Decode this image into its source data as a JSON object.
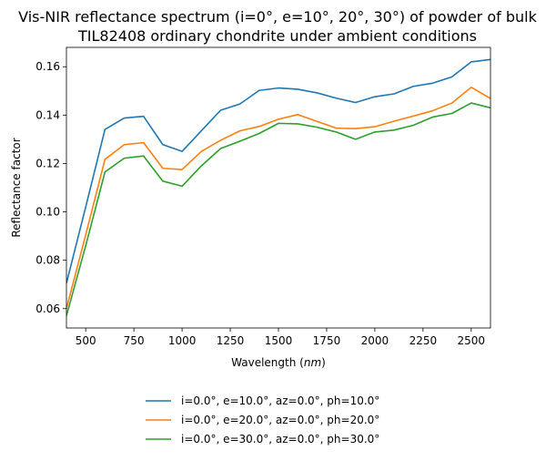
{
  "chart_data": {
    "type": "line",
    "title_lines": [
      "Vis-NIR reflectance spectrum (i=0°, e=10°, 20°, 30°) of powder of bulk",
      "TIL82408 ordinary chondrite under ambient conditions"
    ],
    "xlabel_prefix": "Wavelength (",
    "xlabel_unit": "nm",
    "xlabel_suffix": ")",
    "ylabel": "Reflectance factor",
    "xlim": [
      400,
      2600
    ],
    "ylim": [
      0.052,
      0.168
    ],
    "xticks": [
      500,
      750,
      1000,
      1250,
      1500,
      1750,
      2000,
      2250,
      2500
    ],
    "yticks": [
      0.06,
      0.08,
      0.1,
      0.12,
      0.14,
      0.16
    ],
    "ytick_labels": [
      "0.06",
      "0.08",
      "0.10",
      "0.12",
      "0.14",
      "0.16"
    ],
    "x": [
      400,
      500,
      600,
      700,
      800,
      900,
      1000,
      1100,
      1200,
      1300,
      1400,
      1500,
      1600,
      1700,
      1800,
      1900,
      2000,
      2100,
      2200,
      2300,
      2400,
      2500,
      2600
    ],
    "series": [
      {
        "name": "i=0.0°, e=10.0°, az=0.0°, ph=10.0°",
        "color": "#1f77b4",
        "values": [
          0.0705,
          0.102,
          0.1341,
          0.1388,
          0.1395,
          0.1278,
          0.125,
          0.1335,
          0.142,
          0.1446,
          0.1502,
          0.1512,
          0.1507,
          0.1492,
          0.147,
          0.1452,
          0.1476,
          0.1488,
          0.1519,
          0.1532,
          0.1558,
          0.162,
          0.163
        ]
      },
      {
        "name": "i=0.0°, e=20.0°, az=0.0°, ph=20.0°",
        "color": "#ff7f0e",
        "values": [
          0.06,
          0.0905,
          0.1217,
          0.1278,
          0.1286,
          0.118,
          0.1175,
          0.125,
          0.1296,
          0.1335,
          0.1353,
          0.1383,
          0.1402,
          0.1374,
          0.1346,
          0.1344,
          0.1352,
          0.1375,
          0.1396,
          0.1418,
          0.145,
          0.1515,
          0.1469
        ]
      },
      {
        "name": "i=0.0°, e=30.0°, az=0.0°, ph=30.0°",
        "color": "#2ca02c",
        "values": [
          0.057,
          0.086,
          0.1165,
          0.1222,
          0.1231,
          0.1127,
          0.1106,
          0.119,
          0.1262,
          0.1292,
          0.1324,
          0.1366,
          0.1364,
          0.135,
          0.133,
          0.13,
          0.133,
          0.1338,
          0.1358,
          0.1392,
          0.1407,
          0.145,
          0.143
        ]
      }
    ],
    "grid": false,
    "legend_position": "below-center"
  }
}
